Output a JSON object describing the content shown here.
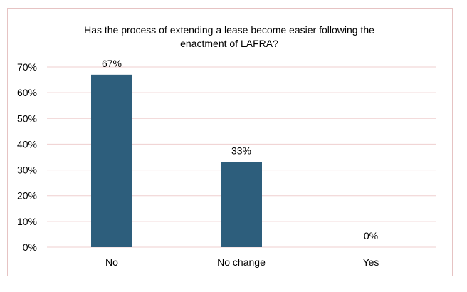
{
  "chart_data": {
    "type": "bar",
    "title_lines": [
      "Has the process of extending a lease become easier following the",
      "enactment of LAFRA?"
    ],
    "categories": [
      "No",
      "No change",
      "Yes"
    ],
    "values": [
      67,
      33,
      0
    ],
    "data_labels": [
      "67%",
      "33%",
      "0%"
    ],
    "ylim": [
      0,
      70
    ],
    "yticks": [
      {
        "value": 0,
        "label": "0%"
      },
      {
        "value": 10,
        "label": "10%"
      },
      {
        "value": 20,
        "label": "20%"
      },
      {
        "value": 30,
        "label": "30%"
      },
      {
        "value": 40,
        "label": "40%"
      },
      {
        "value": 50,
        "label": "50%"
      },
      {
        "value": 60,
        "label": "60%"
      },
      {
        "value": 70,
        "label": "70%"
      }
    ],
    "grid": true,
    "legend": "none",
    "colors": {
      "bar": "#2d5e7c",
      "grid": "#efcfcf",
      "frame": "#e6c3c3"
    }
  }
}
